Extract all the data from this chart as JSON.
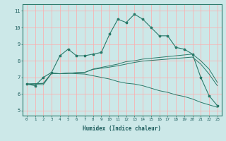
{
  "title": "",
  "xlabel": "Humidex (Indice chaleur)",
  "ylabel": "",
  "bg_color": "#cce8e8",
  "grid_color": "#ffaaaa",
  "line_color": "#2a7a6a",
  "x_ticks": [
    0,
    1,
    2,
    3,
    4,
    5,
    6,
    7,
    8,
    9,
    10,
    11,
    12,
    13,
    14,
    15,
    16,
    17,
    18,
    19,
    20,
    21,
    22,
    23
  ],
  "y_ticks": [
    5,
    6,
    7,
    8,
    9,
    10,
    11
  ],
  "xlim": [
    -0.5,
    23.5
  ],
  "ylim": [
    4.7,
    11.4
  ],
  "series": [
    {
      "x": [
        0,
        1,
        2,
        3,
        4,
        5,
        6,
        7,
        8,
        9,
        10,
        11,
        12,
        13,
        14,
        15,
        16,
        17,
        18,
        19,
        20,
        21,
        22,
        23
      ],
      "y": [
        6.6,
        6.5,
        7.0,
        7.3,
        8.3,
        8.7,
        8.3,
        8.3,
        8.4,
        8.5,
        9.6,
        10.5,
        10.3,
        10.8,
        10.5,
        10.0,
        9.5,
        9.5,
        8.8,
        8.7,
        8.4,
        7.0,
        5.9,
        5.3
      ],
      "has_markers": true
    },
    {
      "x": [
        0,
        1,
        2,
        3,
        4,
        5,
        6,
        7,
        8,
        9,
        10,
        11,
        12,
        13,
        14,
        15,
        16,
        17,
        18,
        19,
        20,
        21,
        22,
        23
      ],
      "y": [
        6.6,
        6.62,
        6.64,
        7.25,
        7.22,
        7.25,
        7.28,
        7.3,
        7.5,
        7.6,
        7.7,
        7.8,
        7.95,
        8.0,
        8.1,
        8.15,
        8.2,
        8.25,
        8.3,
        8.35,
        8.4,
        8.0,
        7.5,
        6.7
      ],
      "has_markers": false
    },
    {
      "x": [
        0,
        1,
        2,
        3,
        4,
        5,
        6,
        7,
        8,
        9,
        10,
        11,
        12,
        13,
        14,
        15,
        16,
        17,
        18,
        19,
        20,
        21,
        22,
        23
      ],
      "y": [
        6.6,
        6.62,
        6.64,
        7.25,
        7.22,
        7.25,
        7.28,
        7.3,
        7.48,
        7.55,
        7.62,
        7.7,
        7.8,
        7.9,
        7.98,
        8.02,
        8.06,
        8.1,
        8.14,
        8.18,
        8.22,
        7.8,
        7.2,
        6.5
      ],
      "has_markers": false
    },
    {
      "x": [
        0,
        1,
        2,
        3,
        4,
        5,
        6,
        7,
        8,
        9,
        10,
        11,
        12,
        13,
        14,
        15,
        16,
        17,
        18,
        19,
        20,
        21,
        22,
        23
      ],
      "y": [
        6.6,
        6.58,
        6.56,
        7.25,
        7.22,
        7.25,
        7.22,
        7.2,
        7.1,
        7.0,
        6.9,
        6.75,
        6.65,
        6.6,
        6.5,
        6.35,
        6.2,
        6.1,
        5.95,
        5.85,
        5.7,
        5.5,
        5.35,
        5.2
      ],
      "has_markers": false
    }
  ]
}
